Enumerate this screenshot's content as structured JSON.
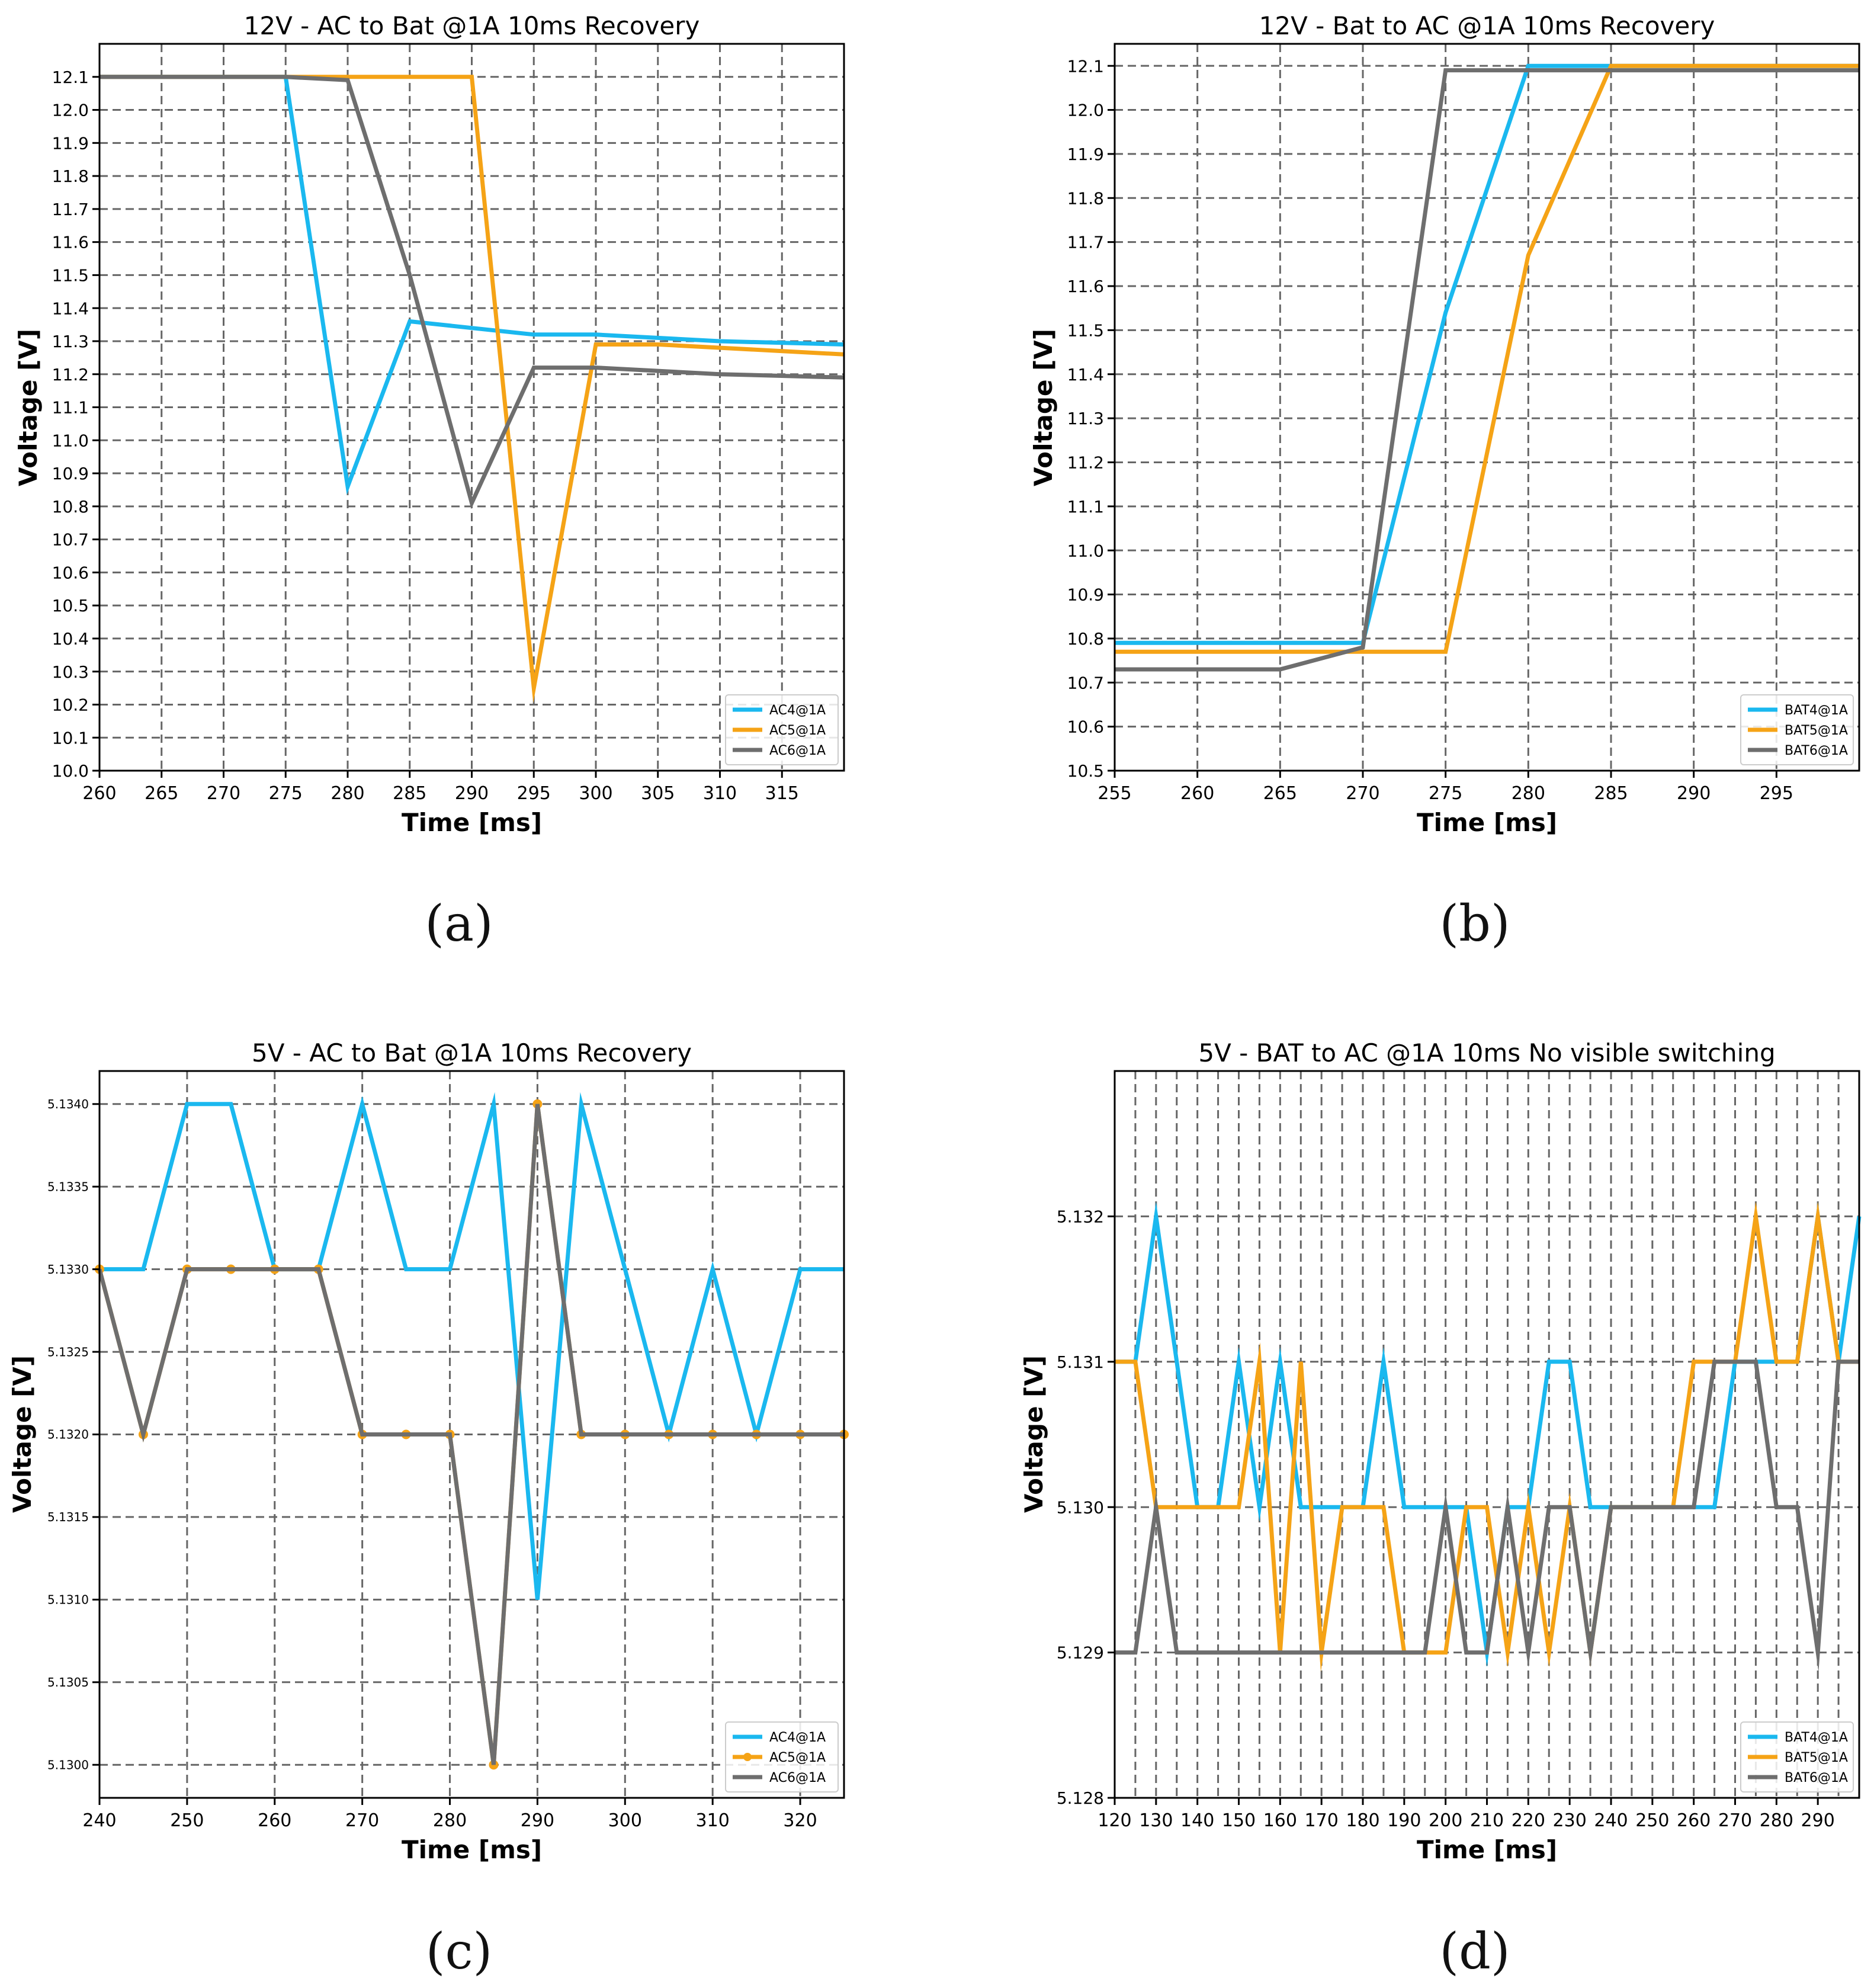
{
  "panel_labels": [
    "(a)",
    "(b)",
    "(c)",
    "(d)"
  ],
  "colors": {
    "AC4": "#1ab8ef",
    "AC5": "#f5a316",
    "AC6": "#6e6e6e",
    "grid": "#666666"
  },
  "chart_data": [
    {
      "type": "line",
      "title": "12V - AC to Bat @1A 10ms Recovery",
      "xlabel": "Time [ms]",
      "ylabel": "Voltage [V]",
      "xlim": [
        260,
        320
      ],
      "ylim": [
        10.0,
        12.2
      ],
      "xticks": [
        260,
        265,
        270,
        275,
        280,
        285,
        290,
        295,
        300,
        305,
        310,
        315
      ],
      "xtick_labels": [
        "260",
        "265",
        "270",
        "275",
        "280",
        "285",
        "290",
        "295",
        "300",
        "305",
        "310",
        "315"
      ],
      "yticks": [
        10.0,
        10.1,
        10.2,
        10.3,
        10.4,
        10.5,
        10.6,
        10.7,
        10.8,
        10.9,
        11.0,
        11.1,
        11.2,
        11.3,
        11.4,
        11.5,
        11.6,
        11.7,
        11.8,
        11.9,
        12.0,
        12.1
      ],
      "ytick_labels": [
        "10.0",
        "10.1",
        "10.2",
        "10.3",
        "10.4",
        "10.5",
        "10.6",
        "10.7",
        "10.8",
        "10.9",
        "11.0",
        "11.1",
        "11.2",
        "11.3",
        "11.4",
        "11.5",
        "11.6",
        "11.7",
        "11.8",
        "11.9",
        "12.0",
        "12.1"
      ],
      "legend": "bottom-right",
      "series": [
        {
          "name": "AC4@1A",
          "color": "#1ab8ef",
          "markers": false,
          "x": [
            260,
            275,
            280,
            285,
            295,
            300,
            310,
            320
          ],
          "y": [
            12.1,
            12.1,
            10.86,
            11.36,
            11.32,
            11.32,
            11.3,
            11.29
          ]
        },
        {
          "name": "AC5@1A",
          "color": "#f5a316",
          "markers": false,
          "x": [
            260,
            290,
            295,
            300,
            305,
            320
          ],
          "y": [
            12.1,
            12.1,
            10.25,
            11.29,
            11.29,
            11.26
          ]
        },
        {
          "name": "AC6@1A",
          "color": "#6e6e6e",
          "markers": false,
          "x": [
            260,
            275,
            280,
            285,
            290,
            295,
            300,
            310,
            320
          ],
          "y": [
            12.1,
            12.1,
            12.09,
            11.5,
            10.81,
            11.22,
            11.22,
            11.2,
            11.19
          ]
        }
      ]
    },
    {
      "type": "line",
      "title": "12V - Bat to AC @1A 10ms Recovery",
      "xlabel": "Time [ms]",
      "ylabel": "Voltage [V]",
      "xlim": [
        255,
        300
      ],
      "ylim": [
        10.5,
        12.15
      ],
      "xticks": [
        255,
        260,
        265,
        270,
        275,
        280,
        285,
        290,
        295
      ],
      "xtick_labels": [
        "255",
        "260",
        "265",
        "270",
        "275",
        "280",
        "285",
        "290",
        "295"
      ],
      "yticks": [
        10.5,
        10.6,
        10.7,
        10.8,
        10.9,
        11.0,
        11.1,
        11.2,
        11.3,
        11.4,
        11.5,
        11.6,
        11.7,
        11.8,
        11.9,
        12.0,
        12.1
      ],
      "ytick_labels": [
        "10.5",
        "10.6",
        "10.7",
        "10.8",
        "10.9",
        "11.0",
        "11.1",
        "11.2",
        "11.3",
        "11.4",
        "11.5",
        "11.6",
        "11.7",
        "11.8",
        "11.9",
        "12.0",
        "12.1"
      ],
      "legend": "bottom-right",
      "series": [
        {
          "name": "BAT4@1A",
          "color": "#1ab8ef",
          "markers": false,
          "x": [
            255,
            270,
            275,
            280,
            285,
            300
          ],
          "y": [
            10.79,
            10.79,
            11.54,
            12.1,
            12.1,
            12.1
          ]
        },
        {
          "name": "BAT5@1A",
          "color": "#f5a316",
          "markers": false,
          "x": [
            255,
            270,
            275,
            280,
            285,
            300
          ],
          "y": [
            10.77,
            10.77,
            10.77,
            11.67,
            12.1,
            12.1
          ]
        },
        {
          "name": "BAT6@1A",
          "color": "#6e6e6e",
          "markers": false,
          "x": [
            255,
            265,
            270,
            275,
            300
          ],
          "y": [
            10.73,
            10.73,
            10.78,
            12.09,
            12.09
          ]
        }
      ]
    },
    {
      "type": "line",
      "title": "5V - AC to Bat @1A 10ms Recovery",
      "xlabel": "Time [ms]",
      "ylabel": "Voltage [V]",
      "xlim": [
        240,
        325
      ],
      "ylim": [
        5.1298,
        5.1342
      ],
      "xticks": [
        240,
        250,
        260,
        270,
        280,
        290,
        300,
        310,
        320
      ],
      "xtick_labels": [
        "240",
        "250",
        "260",
        "270",
        "280",
        "290",
        "300",
        "310",
        "320"
      ],
      "yticks": [
        5.13,
        5.1305,
        5.131,
        5.1315,
        5.132,
        5.1325,
        5.133,
        5.1335,
        5.134
      ],
      "ytick_labels": [
        "5.1300",
        "5.1305",
        "5.1310",
        "5.1315",
        "5.1320",
        "5.1325",
        "5.1330",
        "5.1335",
        "5.1340"
      ],
      "legend": "bottom-right",
      "series": [
        {
          "name": "AC4@1A",
          "color": "#1ab8ef",
          "markers": false,
          "x": [
            240,
            245,
            250,
            255,
            260,
            265,
            270,
            275,
            280,
            285,
            290,
            295,
            300,
            305,
            310,
            315,
            320,
            325
          ],
          "y": [
            5.133,
            5.133,
            5.134,
            5.134,
            5.133,
            5.133,
            5.134,
            5.133,
            5.133,
            5.134,
            5.131,
            5.134,
            5.133,
            5.132,
            5.133,
            5.132,
            5.133,
            5.133
          ]
        },
        {
          "name": "AC5@1A",
          "color": "#f5a316",
          "markers": true,
          "x": [
            240,
            245,
            250,
            255,
            260,
            265,
            270,
            275,
            280,
            285,
            290,
            295,
            300,
            305,
            310,
            315,
            320,
            325
          ],
          "y": [
            5.133,
            5.132,
            5.133,
            5.133,
            5.133,
            5.133,
            5.132,
            5.132,
            5.132,
            5.13,
            5.134,
            5.132,
            5.132,
            5.132,
            5.132,
            5.132,
            5.132,
            5.132
          ]
        },
        {
          "name": "AC6@1A",
          "color": "#6e6e6e",
          "markers": false,
          "x": [
            240,
            245,
            250,
            255,
            260,
            265,
            270,
            275,
            280,
            285,
            290,
            295,
            300,
            305,
            310,
            315,
            320,
            325
          ],
          "y": [
            5.133,
            5.132,
            5.133,
            5.133,
            5.133,
            5.133,
            5.132,
            5.132,
            5.132,
            5.13,
            5.134,
            5.132,
            5.132,
            5.132,
            5.132,
            5.132,
            5.132,
            5.132
          ]
        }
      ]
    },
    {
      "type": "line",
      "title": "5V - BAT to AC @1A 10ms No visible switching",
      "xlabel": "Time [ms]",
      "ylabel": "Voltage [V]",
      "xlim": [
        120,
        300
      ],
      "ylim": [
        5.128,
        5.133
      ],
      "xticks": [
        120,
        130,
        140,
        150,
        160,
        170,
        180,
        190,
        200,
        210,
        220,
        230,
        240,
        250,
        260,
        270,
        280,
        290
      ],
      "xtick_labels": [
        "120",
        "130",
        "140",
        "150",
        "160",
        "170",
        "180",
        "190",
        "200",
        "210",
        "220",
        "230",
        "240",
        "250",
        "260",
        "270",
        "280",
        "290"
      ],
      "grid_x": [
        125,
        130,
        135,
        140,
        145,
        150,
        155,
        160,
        165,
        170,
        175,
        180,
        185,
        190,
        195,
        200,
        205,
        210,
        215,
        220,
        225,
        230,
        235,
        240,
        245,
        250,
        255,
        260,
        265,
        270,
        275,
        280,
        285,
        290,
        295
      ],
      "yticks": [
        5.128,
        5.129,
        5.13,
        5.131,
        5.132
      ],
      "ytick_labels": [
        "5.128",
        "5.129",
        "5.130",
        "5.131",
        "5.132"
      ],
      "legend": "bottom-right",
      "series": [
        {
          "name": "BAT4@1A",
          "color": "#1ab8ef",
          "markers": false,
          "x": [
            120,
            125,
            130,
            135,
            140,
            145,
            150,
            155,
            160,
            165,
            170,
            175,
            180,
            185,
            190,
            195,
            200,
            205,
            210,
            215,
            220,
            225,
            230,
            235,
            240,
            245,
            250,
            255,
            260,
            265,
            270,
            275,
            280,
            285,
            290,
            295,
            300
          ],
          "y": [
            5.131,
            5.131,
            5.132,
            5.131,
            5.13,
            5.13,
            5.131,
            5.13,
            5.131,
            5.13,
            5.13,
            5.13,
            5.13,
            5.131,
            5.13,
            5.13,
            5.13,
            5.13,
            5.129,
            5.13,
            5.13,
            5.131,
            5.131,
            5.13,
            5.13,
            5.13,
            5.13,
            5.13,
            5.13,
            5.13,
            5.131,
            5.131,
            5.131,
            5.131,
            5.132,
            5.131,
            5.132
          ]
        },
        {
          "name": "BAT5@1A",
          "color": "#f5a316",
          "markers": false,
          "x": [
            120,
            125,
            130,
            135,
            140,
            145,
            150,
            155,
            160,
            165,
            170,
            175,
            180,
            185,
            190,
            195,
            200,
            205,
            210,
            215,
            220,
            225,
            230,
            235,
            240,
            245,
            250,
            255,
            260,
            265,
            270,
            275,
            280,
            285,
            290,
            295,
            300
          ],
          "y": [
            5.131,
            5.131,
            5.13,
            5.13,
            5.13,
            5.13,
            5.13,
            5.131,
            5.129,
            5.131,
            5.129,
            5.13,
            5.13,
            5.13,
            5.129,
            5.129,
            5.129,
            5.13,
            5.13,
            5.129,
            5.13,
            5.129,
            5.13,
            5.129,
            5.13,
            5.13,
            5.13,
            5.13,
            5.131,
            5.131,
            5.131,
            5.132,
            5.131,
            5.131,
            5.132,
            5.131,
            5.131
          ]
        },
        {
          "name": "BAT6@1A",
          "color": "#6e6e6e",
          "markers": false,
          "x": [
            120,
            125,
            130,
            135,
            140,
            145,
            150,
            155,
            160,
            165,
            170,
            175,
            180,
            185,
            190,
            195,
            200,
            205,
            210,
            215,
            220,
            225,
            230,
            235,
            240,
            245,
            250,
            255,
            260,
            265,
            270,
            275,
            280,
            285,
            290,
            295,
            300
          ],
          "y": [
            5.129,
            5.129,
            5.13,
            5.129,
            5.129,
            5.129,
            5.129,
            5.129,
            5.129,
            5.129,
            5.129,
            5.129,
            5.129,
            5.129,
            5.129,
            5.129,
            5.13,
            5.129,
            5.129,
            5.13,
            5.129,
            5.13,
            5.13,
            5.129,
            5.13,
            5.13,
            5.13,
            5.13,
            5.13,
            5.131,
            5.131,
            5.131,
            5.13,
            5.13,
            5.129,
            5.131,
            5.131
          ]
        }
      ]
    }
  ]
}
